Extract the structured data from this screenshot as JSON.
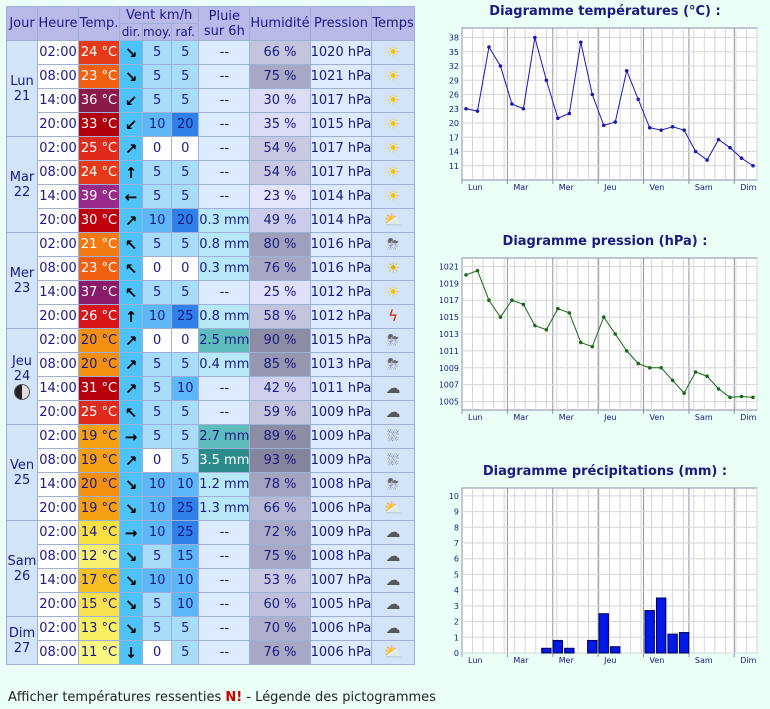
{
  "headers": {
    "jour": "Jour",
    "heure": "Heure",
    "temp": "Temp.",
    "vent": "Vent km/h",
    "pluie_l1": "Pluie",
    "pluie_l2": "sur 6h",
    "humidite": "Humidité",
    "pression": "Pression",
    "temps": "Temps",
    "dir": "dir.",
    "moy": "moy.",
    "raf": "raf."
  },
  "days": [
    {
      "name": "Lun",
      "num": "21",
      "rows": [
        {
          "time": "02:00",
          "temp": "24 °C",
          "tcolor": "#e53a1a",
          "dir": "↘",
          "moy": "5",
          "raf": "5",
          "rain": "--",
          "hum": "66 %",
          "hcolor": "#c4c4dc",
          "pres": "1020 hPa",
          "icon": "sun"
        },
        {
          "time": "08:00",
          "temp": "23 °C",
          "tcolor": "#f06010",
          "dir": "↘",
          "moy": "5",
          "raf": "5",
          "rain": "--",
          "hum": "75 %",
          "hcolor": "#a8a8c4",
          "pres": "1021 hPa",
          "icon": "sun"
        },
        {
          "time": "14:00",
          "temp": "36 °C",
          "tcolor": "#8b1a4a",
          "dir": "↙",
          "moy": "5",
          "raf": "5",
          "rain": "--",
          "hum": "30 %",
          "hcolor": "#dcdcf4",
          "pres": "1017 hPa",
          "icon": "sun"
        },
        {
          "time": "20:00",
          "temp": "33 °C",
          "tcolor": "#b0000c",
          "dir": "↙",
          "moy": "10",
          "raf": "20",
          "rain": "--",
          "hum": "35 %",
          "hcolor": "#dcdcf4",
          "pres": "1015 hPa",
          "icon": "sun"
        }
      ]
    },
    {
      "name": "Mar",
      "num": "22",
      "rows": [
        {
          "time": "02:00",
          "temp": "25 °C",
          "tcolor": "#e02a1a",
          "dir": "↗",
          "moy": "0",
          "raf": "0",
          "rain": "--",
          "hum": "54 %",
          "hcolor": "#c8c8e0",
          "pres": "1017 hPa",
          "icon": "sun"
        },
        {
          "time": "08:00",
          "temp": "24 °C",
          "tcolor": "#e53a1a",
          "dir": "↑",
          "moy": "5",
          "raf": "5",
          "rain": "--",
          "hum": "54 %",
          "hcolor": "#c8c8e0",
          "pres": "1017 hPa",
          "icon": "sun"
        },
        {
          "time": "14:00",
          "temp": "39 °C",
          "tcolor": "#9a2a8a",
          "dir": "←",
          "moy": "5",
          "raf": "5",
          "rain": "--",
          "hum": "23 %",
          "hcolor": "#e4e4fa",
          "pres": "1014 hPa",
          "icon": "sun"
        },
        {
          "time": "20:00",
          "temp": "30 °C",
          "tcolor": "#c0000c",
          "dir": "↗",
          "moy": "10",
          "raf": "20",
          "rain": "0.3 mm",
          "hum": "49 %",
          "hcolor": "#ccccea",
          "pres": "1014 hPa",
          "icon": "sun-cloud-rain"
        }
      ]
    },
    {
      "name": "Mer",
      "num": "23",
      "rows": [
        {
          "time": "02:00",
          "temp": "21 °C",
          "tcolor": "#f27a10",
          "dir": "↖",
          "moy": "5",
          "raf": "5",
          "rain": "0.8 mm",
          "hum": "80 %",
          "hcolor": "#a0a0bc",
          "pres": "1016 hPa",
          "icon": "cloud-sun-rain"
        },
        {
          "time": "08:00",
          "temp": "23 °C",
          "tcolor": "#f06010",
          "dir": "↖",
          "moy": "0",
          "raf": "0",
          "rain": "0.3 mm",
          "hum": "76 %",
          "hcolor": "#a8a8c4",
          "pres": "1016 hPa",
          "icon": "sun-haze"
        },
        {
          "time": "14:00",
          "temp": "37 °C",
          "tcolor": "#8a1a6a",
          "dir": "↖",
          "moy": "5",
          "raf": "5",
          "rain": "--",
          "hum": "25 %",
          "hcolor": "#e0e0f8",
          "pres": "1012 hPa",
          "icon": "sun"
        },
        {
          "time": "20:00",
          "temp": "26 °C",
          "tcolor": "#d8161a",
          "dir": "↑",
          "moy": "10",
          "raf": "25",
          "rain": "0.8 mm",
          "hum": "58 %",
          "hcolor": "#c4c4dc",
          "pres": "1012 hPa",
          "icon": "storm"
        }
      ]
    },
    {
      "name": "Jeu",
      "num": "24",
      "moon": true,
      "rows": [
        {
          "time": "02:00",
          "temp": "20 °C",
          "tcolor": "#f39010",
          "dir": "↗",
          "moy": "0",
          "raf": "0",
          "rain": "2.5 mm",
          "hum": "90 %",
          "hcolor": "#8c8ca4",
          "pres": "1015 hPa",
          "icon": "cloud-sun-rain"
        },
        {
          "time": "08:00",
          "temp": "20 °C",
          "tcolor": "#f39010",
          "dir": "↗",
          "moy": "5",
          "raf": "5",
          "rain": "0.4 mm",
          "hum": "85 %",
          "hcolor": "#9696b0",
          "pres": "1013 hPa",
          "icon": "cloud-sun-rain"
        },
        {
          "time": "14:00",
          "temp": "31 °C",
          "tcolor": "#b8000c",
          "dir": "↗",
          "moy": "5",
          "raf": "10",
          "rain": "--",
          "hum": "42 %",
          "hcolor": "#d0d0ec",
          "pres": "1011 hPa",
          "icon": "cloud"
        },
        {
          "time": "20:00",
          "temp": "25 °C",
          "tcolor": "#e02a1a",
          "dir": "↖",
          "moy": "5",
          "raf": "5",
          "rain": "--",
          "hum": "59 %",
          "hcolor": "#c4c4dc",
          "pres": "1009 hPa",
          "icon": "cloud"
        }
      ]
    },
    {
      "name": "Ven",
      "num": "25",
      "rows": [
        {
          "time": "02:00",
          "temp": "19 °C",
          "tcolor": "#f5a010",
          "dir": "→",
          "moy": "5",
          "raf": "5",
          "rain": "2.7 mm",
          "hum": "89 %",
          "hcolor": "#8c8ca4",
          "pres": "1009 hPa",
          "icon": "cloud-rain"
        },
        {
          "time": "08:00",
          "temp": "19 °C",
          "tcolor": "#f5a010",
          "dir": "↗",
          "moy": "0",
          "raf": "5",
          "rain": "3.5 mm",
          "hum": "93 %",
          "hcolor": "#84849c",
          "pres": "1009 hPa",
          "icon": "cloud-rain"
        },
        {
          "time": "14:00",
          "temp": "20 °C",
          "tcolor": "#f39010",
          "dir": "↘",
          "moy": "10",
          "raf": "10",
          "rain": "1.2 mm",
          "hum": "78 %",
          "hcolor": "#a4a4c0",
          "pres": "1008 hPa",
          "icon": "cloud-sun-rain"
        },
        {
          "time": "20:00",
          "temp": "19 °C",
          "tcolor": "#f5a010",
          "dir": "↘",
          "moy": "10",
          "raf": "25",
          "rain": "1.3 mm",
          "hum": "66 %",
          "hcolor": "#b8b8d4",
          "pres": "1006 hPa",
          "icon": "cloud-sun"
        }
      ]
    },
    {
      "name": "Sam",
      "num": "26",
      "rows": [
        {
          "time": "02:00",
          "temp": "14 °C",
          "tcolor": "#f8e040",
          "dir": "→",
          "moy": "10",
          "raf": "25",
          "rain": "--",
          "hum": "72 %",
          "hcolor": "#acacc8",
          "pres": "1009 hPa",
          "icon": "cloud"
        },
        {
          "time": "08:00",
          "temp": "12 °C",
          "tcolor": "#f8f070",
          "dir": "↘",
          "moy": "5",
          "raf": "15",
          "rain": "--",
          "hum": "75 %",
          "hcolor": "#a8a8c4",
          "pres": "1008 hPa",
          "icon": "cloud"
        },
        {
          "time": "14:00",
          "temp": "17 °C",
          "tcolor": "#f7c020",
          "dir": "↘",
          "moy": "10",
          "raf": "10",
          "rain": "--",
          "hum": "53 %",
          "hcolor": "#c8c8e0",
          "pres": "1007 hPa",
          "icon": "cloud"
        },
        {
          "time": "20:00",
          "temp": "15 °C",
          "tcolor": "#f8e050",
          "dir": "↘",
          "moy": "5",
          "raf": "10",
          "rain": "--",
          "hum": "60 %",
          "hcolor": "#c0c0dc",
          "pres": "1005 hPa",
          "icon": "cloud"
        }
      ]
    },
    {
      "name": "Dim",
      "num": "27",
      "rows": [
        {
          "time": "02:00",
          "temp": "13 °C",
          "tcolor": "#f8f060",
          "dir": "↘",
          "moy": "5",
          "raf": "5",
          "rain": "--",
          "hum": "70 %",
          "hcolor": "#b0b0cc",
          "pres": "1006 hPa",
          "icon": "cloud"
        },
        {
          "time": "08:00",
          "temp": "11 °C",
          "tcolor": "#f8f880",
          "dir": "↓",
          "moy": "0",
          "raf": "5",
          "rain": "--",
          "hum": "76 %",
          "hcolor": "#a8a8c4",
          "pres": "1006 hPa",
          "icon": "sun-cloud"
        }
      ]
    }
  ],
  "footer": {
    "text1": "Afficher températures ressenties ",
    "n": "N!",
    "text2": " - Légende des pictogrammes"
  },
  "colors": {
    "header": "#b9b9ea",
    "temp_line": "#1a1ab0",
    "pres_line": "#1a6a1a",
    "rain_bar": "#0018e8"
  },
  "chart_data": [
    {
      "type": "line",
      "title": "Diagramme températures (°C) :",
      "xlabels": [
        "Lun",
        "Mar",
        "Mer",
        "Jeu",
        "Ven",
        "Sam",
        "Dim"
      ],
      "yticks": [
        11,
        14,
        17,
        20,
        23,
        26,
        29,
        32,
        35,
        38
      ],
      "ylim": [
        8,
        40
      ],
      "values": [
        23,
        22.5,
        36,
        32,
        24,
        23,
        38,
        29,
        21,
        22,
        37,
        26,
        19.5,
        20.2,
        31,
        25,
        19,
        18.5,
        19.2,
        18.5,
        14,
        12.2,
        16.5,
        14.8,
        12.6,
        11
      ]
    },
    {
      "type": "line",
      "title": "Diagramme pression (hPa) :",
      "xlabels": [
        "Lun",
        "Mar",
        "Mer",
        "Jeu",
        "Ven",
        "Sam",
        "Dim"
      ],
      "yticks": [
        1005,
        1007,
        1009,
        1011,
        1013,
        1015,
        1017,
        1019,
        1021
      ],
      "ylim": [
        1004,
        1022
      ],
      "values": [
        1020,
        1020.5,
        1017,
        1015,
        1017,
        1016.5,
        1014,
        1013.5,
        1016,
        1015.5,
        1012,
        1011.5,
        1015,
        1013,
        1011,
        1009.5,
        1009,
        1009,
        1007.5,
        1006,
        1008.5,
        1008,
        1006.5,
        1005.5,
        1005.6,
        1005.5
      ]
    },
    {
      "type": "bar",
      "title": "Diagramme précipitations (mm) :",
      "xlabels": [
        "Lun",
        "Mar",
        "Mer",
        "Jeu",
        "Ven",
        "Sam",
        "Dim"
      ],
      "yticks": [
        0,
        1,
        2,
        3,
        4,
        5,
        6,
        7,
        8,
        9,
        10
      ],
      "ylim": [
        0,
        10.5
      ],
      "values": [
        0,
        0,
        0,
        0,
        0,
        0,
        0,
        0.3,
        0.8,
        0.3,
        0,
        0.8,
        2.5,
        0.4,
        0,
        0,
        2.7,
        3.5,
        1.2,
        1.3,
        0,
        0,
        0,
        0,
        0,
        0
      ]
    }
  ]
}
